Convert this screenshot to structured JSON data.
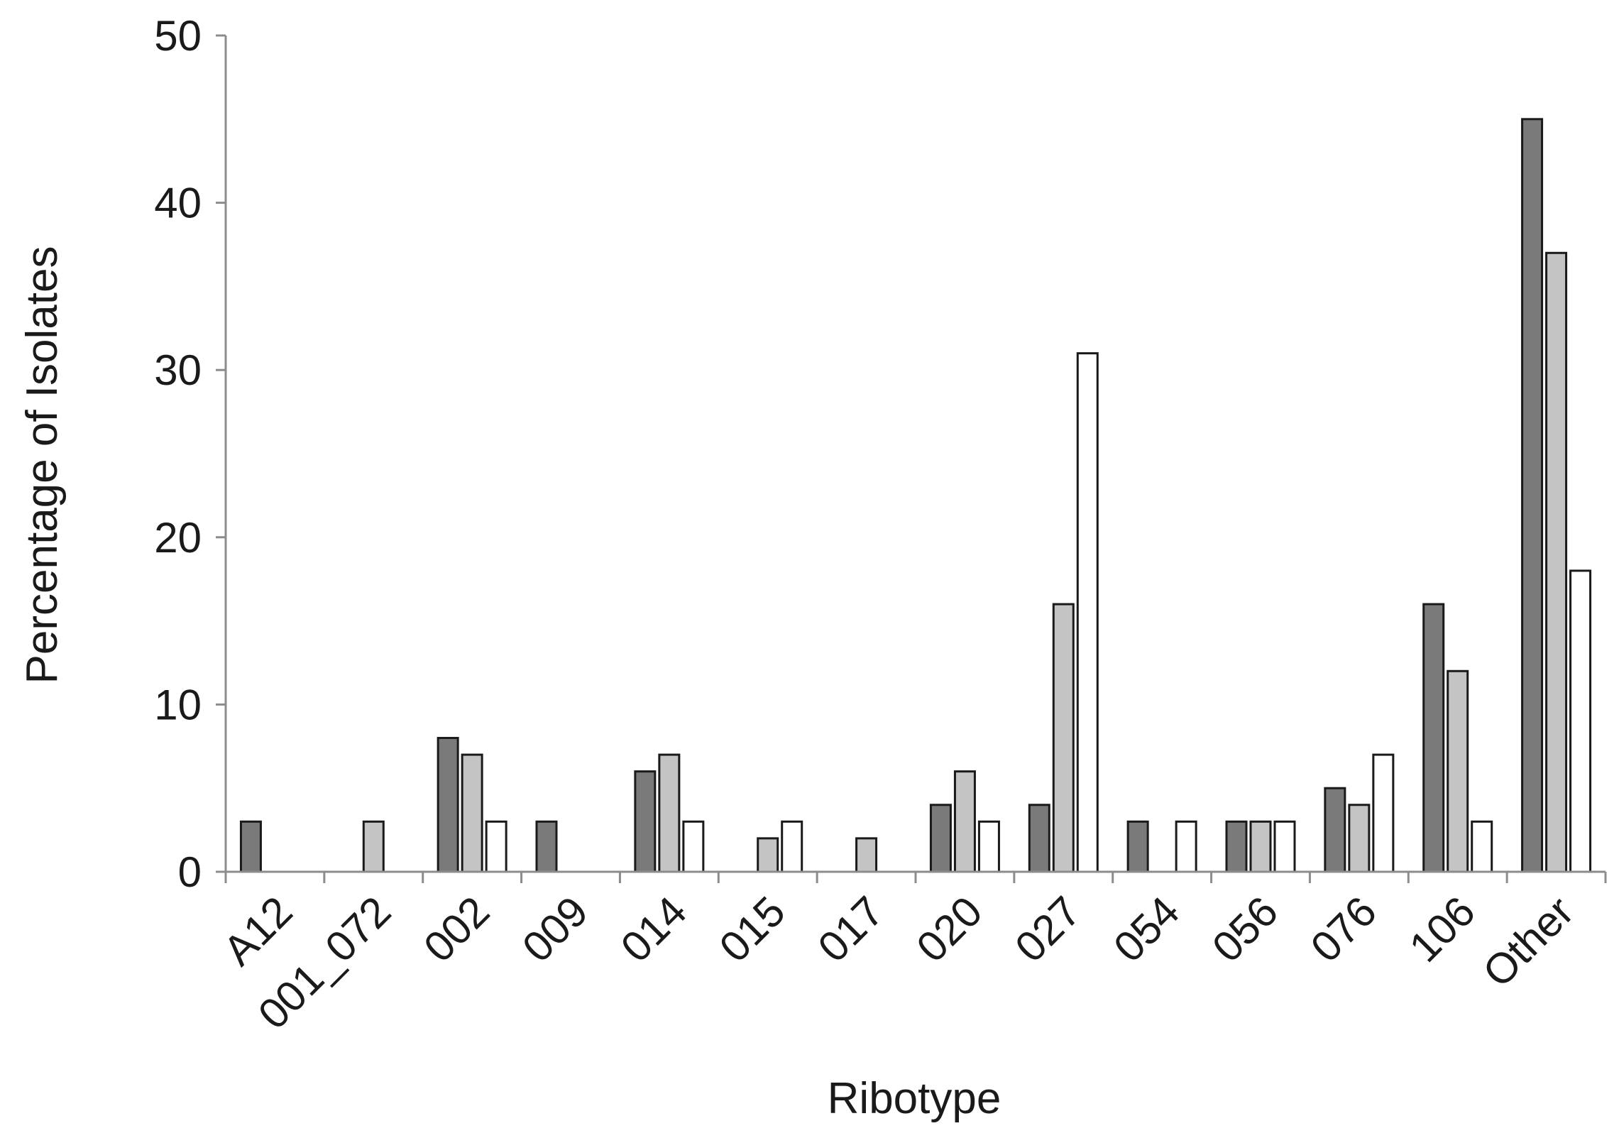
{
  "chart_data": {
    "type": "bar",
    "xlabel": "Ribotype",
    "ylabel": "Percentage of Isolates",
    "ylim": [
      0,
      50
    ],
    "yticks": [
      0,
      10,
      20,
      30,
      40,
      50
    ],
    "grid": false,
    "legend": "none",
    "categories": [
      "A12",
      "001_072",
      "002",
      "009",
      "014",
      "015",
      "017",
      "020",
      "027",
      "054",
      "056",
      "076",
      "106",
      "Other"
    ],
    "series": [
      {
        "color": "#7a7a7a",
        "values": [
          3,
          0,
          8,
          3,
          6,
          0,
          0,
          4,
          4,
          3,
          3,
          5,
          16,
          45
        ]
      },
      {
        "color": "#c4c4c4",
        "values": [
          0,
          3,
          7,
          0,
          7,
          2,
          2,
          6,
          16,
          0,
          3,
          4,
          12,
          37
        ]
      },
      {
        "color": "#ffffff",
        "values": [
          0,
          0,
          3,
          0,
          3,
          3,
          0,
          3,
          31,
          3,
          3,
          7,
          3,
          18
        ]
      }
    ]
  }
}
